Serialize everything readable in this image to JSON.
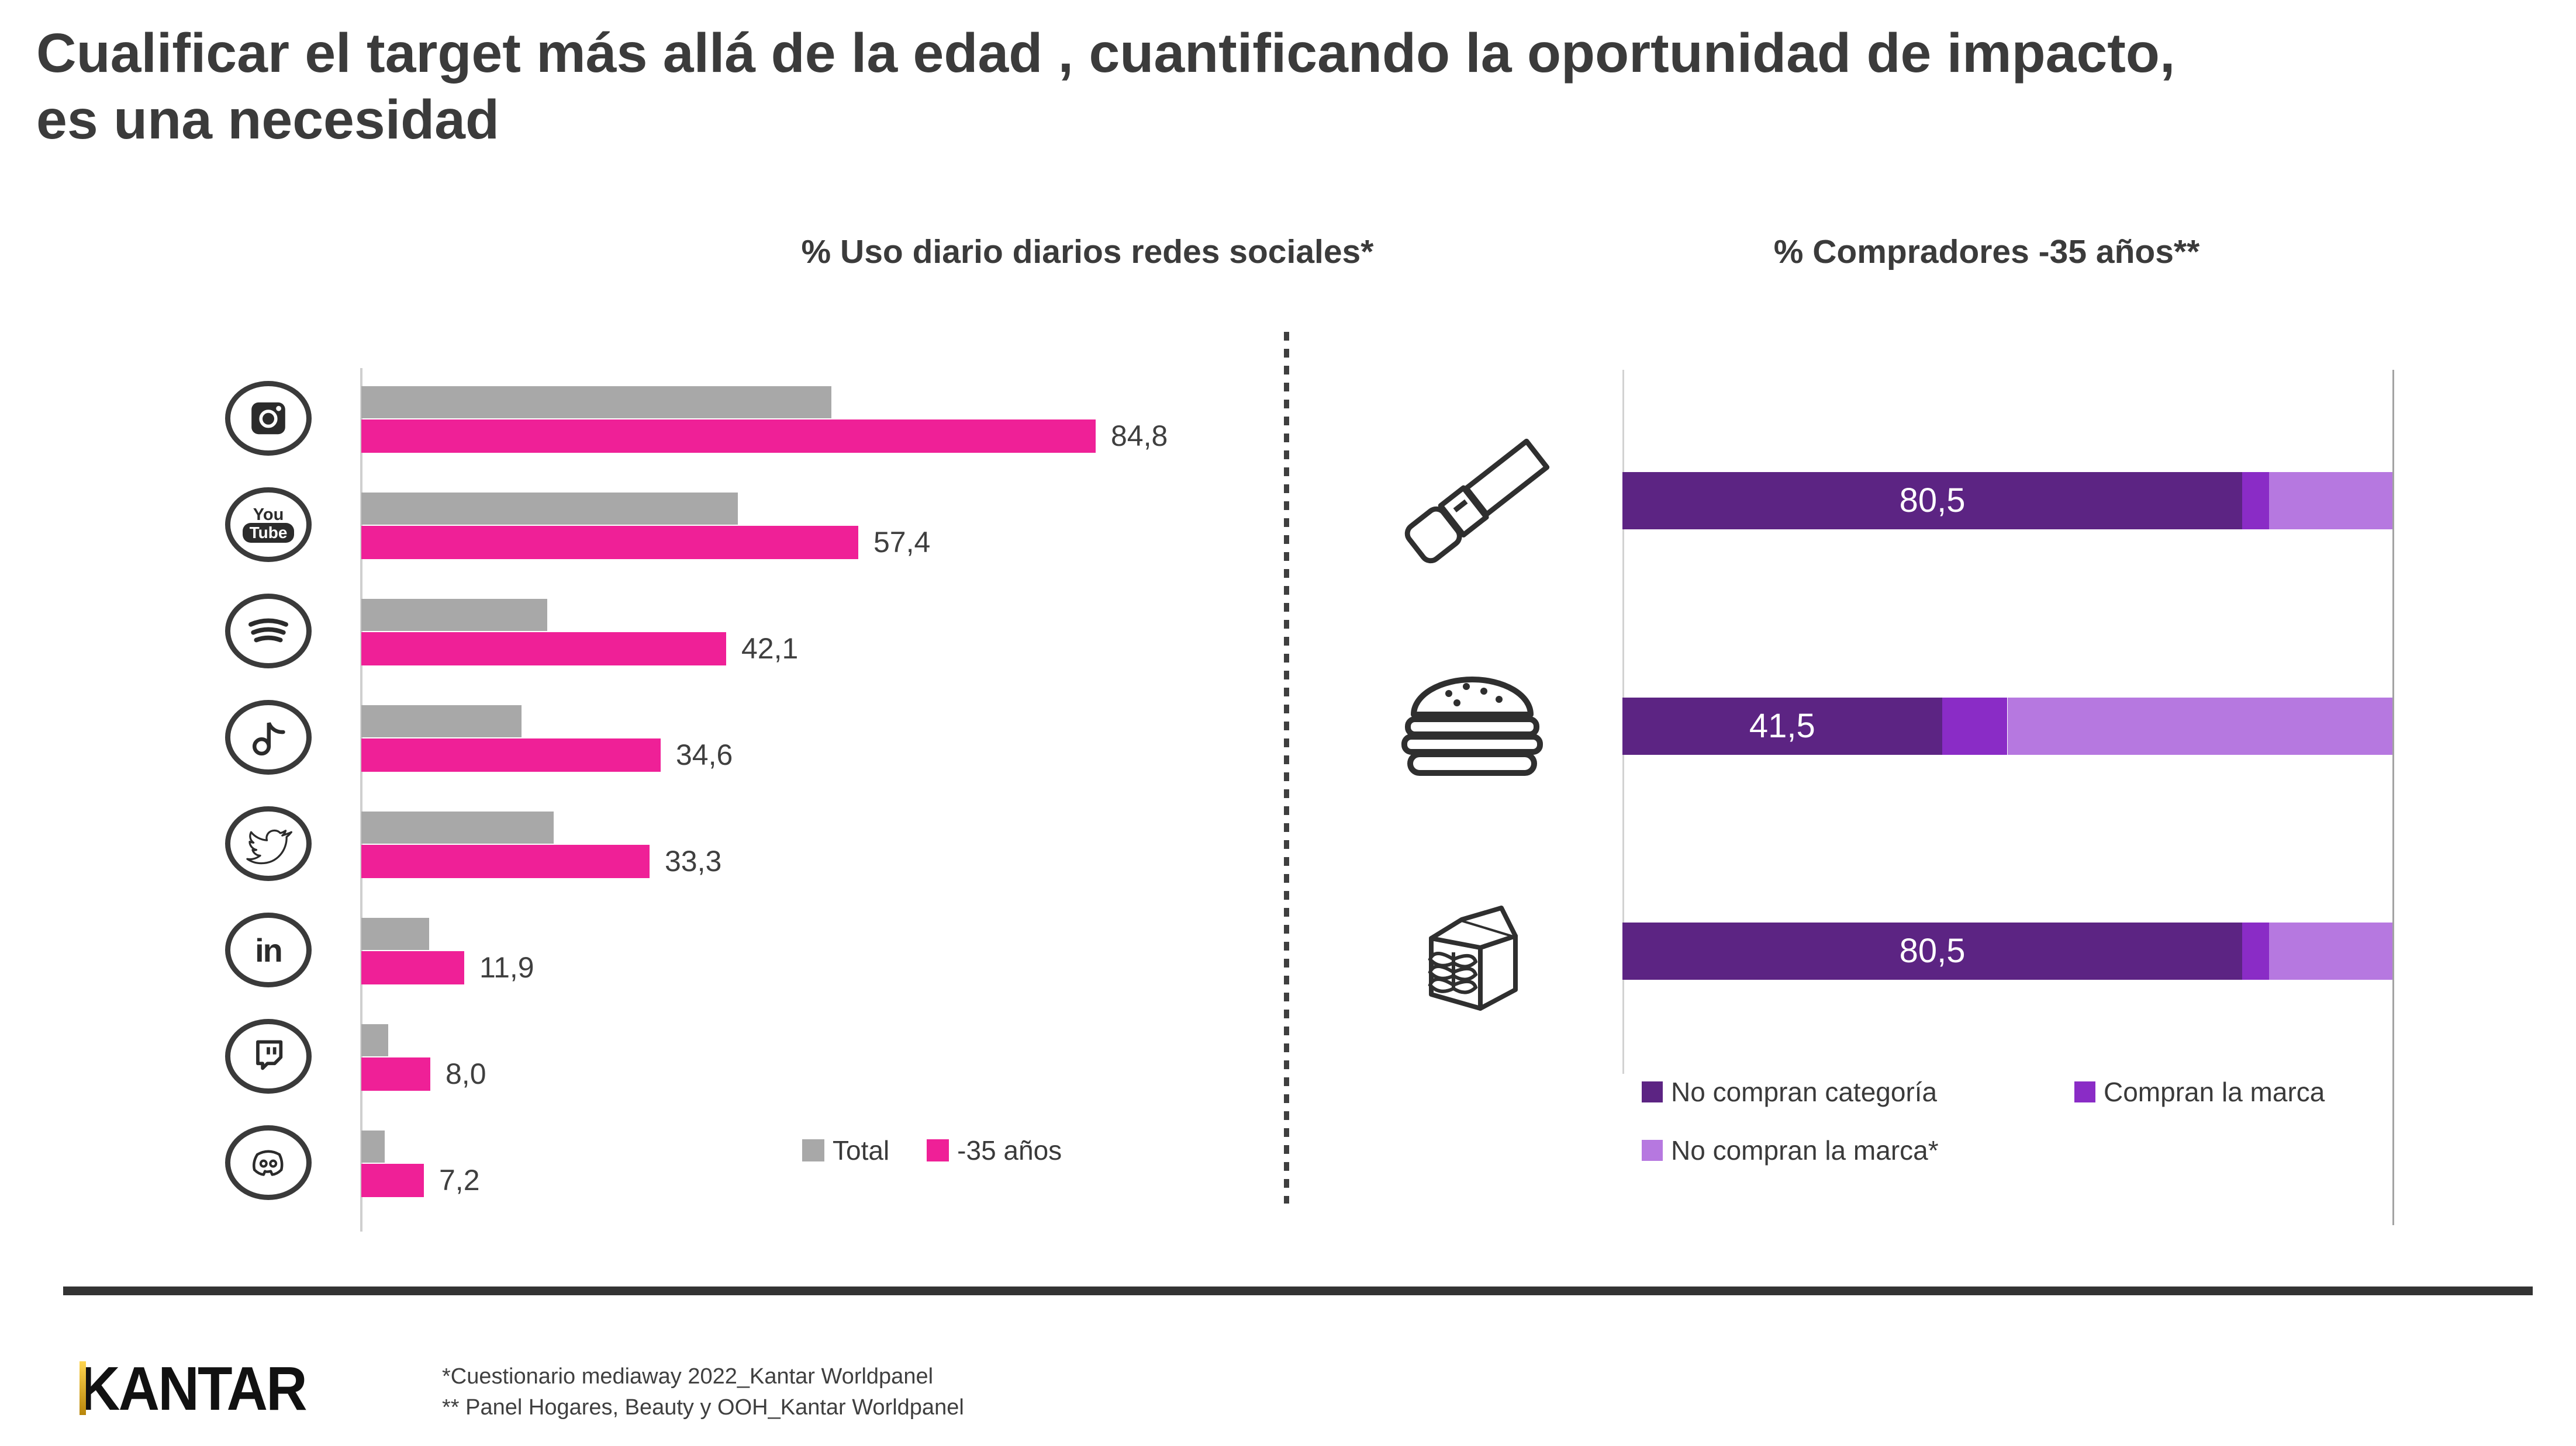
{
  "slide": {
    "title_lines": [
      "Cualificar el target más allá de la edad , cuantificando la oportunidad de impacto,",
      "es una necesidad"
    ]
  },
  "colors": {
    "pink": "#EF2097",
    "gray": "#A8A8A8",
    "dark_purple": "#5C2483",
    "mid_purple": "#8A2CC6",
    "light_purple": "#B678E0",
    "text_dark": "#3B3B3B",
    "divider": "#3F3F3F",
    "footer_rule": "#333333",
    "logo_gold": "#C79A00"
  },
  "chart_data": [
    {
      "type": "bar",
      "orientation": "horizontal",
      "title": "% Uso diario diarios redes sociales*",
      "categories": [
        "instagram",
        "youtube",
        "spotify",
        "tiktok",
        "twitter",
        "linkedin",
        "twitch",
        "discord"
      ],
      "icons": [
        "instagram-icon",
        "youtube-icon",
        "spotify-icon",
        "tiktok-icon",
        "twitter-icon",
        "linkedin-icon",
        "twitch-icon",
        "discord-icon"
      ],
      "series": [
        {
          "name": "Total",
          "color": "#A8A8A8",
          "values": [
            54.3,
            43.5,
            21.5,
            18.5,
            22.2,
            7.8,
            3.1,
            2.7
          ],
          "labels": [
            "",
            "",
            "",
            "",
            "",
            "",
            "",
            ""
          ]
        },
        {
          "name": "-35 años",
          "color": "#EF2097",
          "values": [
            84.8,
            57.4,
            42.1,
            34.6,
            33.3,
            11.9,
            8.0,
            7.2
          ],
          "labels": [
            "84,8",
            "57,4",
            "42,1",
            "34,6",
            "33,3",
            "11,9",
            "8,0",
            "7,2"
          ]
        }
      ],
      "xlim": [
        0,
        95
      ],
      "grid": false,
      "legend_position": "bottom-right",
      "value_labels_shown_for": "-35 años"
    },
    {
      "type": "bar",
      "subtype": "stacked",
      "orientation": "horizontal",
      "title": "% Compradores -35 años**",
      "categories": [
        "lipstick-beauty",
        "hamburger-food",
        "milk-carton-grocery"
      ],
      "icons": [
        "lipstick-icon",
        "hamburger-icon",
        "milk-carton-icon"
      ],
      "series": [
        {
          "name": "No compran categoría",
          "color": "#5C2483",
          "values": [
            80.5,
            41.5,
            80.5
          ],
          "labels": [
            "80,5",
            "41,5",
            "80,5"
          ]
        },
        {
          "name": "Compran la marca",
          "color": "#8A2CC6",
          "values": [
            3.5,
            8.5,
            3.5
          ],
          "labels": [
            "",
            "",
            ""
          ]
        },
        {
          "name": "No compran la marca*",
          "color": "#B678E0",
          "values": [
            16.0,
            50.0,
            16.0
          ],
          "labels": [
            "",
            "",
            ""
          ]
        }
      ],
      "xlim": [
        0,
        100
      ],
      "grid": false,
      "legend_position": "bottom"
    }
  ],
  "footer": {
    "logo_text": "KANTAR",
    "footnotes": [
      "*Cuestionario mediaway 2022_Kantar Worldpanel",
      "** Panel Hogares, Beauty y OOH_Kantar Worldpanel"
    ]
  }
}
